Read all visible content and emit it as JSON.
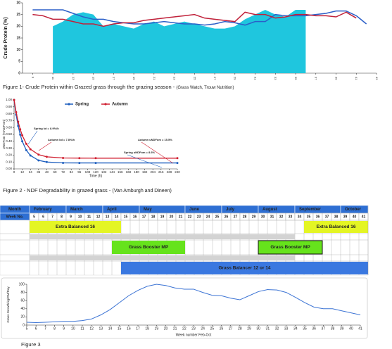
{
  "chart_data": [
    {
      "type": "line",
      "ylabel": "Crude Protein (%)",
      "xlim": [
        8,
        43
      ],
      "xticks": [
        9,
        11,
        13,
        15,
        17,
        19,
        21,
        23,
        25,
        27,
        29,
        31,
        33,
        35,
        37,
        39,
        41,
        43
      ],
      "ylim": [
        0,
        30
      ],
      "yticks": [
        0,
        5,
        10,
        15,
        20,
        25,
        30
      ],
      "grid": false,
      "series": [
        {
          "color": "#1fc6de",
          "area": true,
          "x": [
            11,
            12,
            13,
            14,
            15,
            16,
            17,
            18,
            19,
            20,
            21,
            22,
            23,
            24,
            25,
            26,
            27,
            28,
            29,
            30,
            31,
            32,
            33,
            34,
            35,
            36
          ],
          "values": [
            20,
            22,
            25,
            26,
            25,
            20,
            21,
            20,
            19,
            21,
            22,
            20,
            21,
            22,
            21,
            20,
            19,
            19,
            20,
            23,
            25,
            27,
            25,
            24,
            27,
            27
          ]
        },
        {
          "color": "#2b5fc8",
          "x": [
            9,
            10,
            11,
            12,
            13,
            14,
            15,
            16,
            17,
            18,
            19,
            20,
            21,
            22,
            23,
            24,
            25,
            26,
            27,
            28,
            29,
            30,
            31,
            32,
            33,
            34,
            35,
            36,
            37,
            38,
            39,
            40,
            41,
            42
          ],
          "values": [
            27,
            27,
            27,
            27,
            25.5,
            24,
            23,
            23,
            22,
            21.5,
            21,
            21,
            21.5,
            22,
            21.5,
            21,
            21,
            20.5,
            21,
            22,
            21.5,
            20.5,
            22,
            22,
            25,
            24.5,
            24.5,
            24.5,
            25,
            25.5,
            26.5,
            26.5,
            24.5,
            21
          ]
        },
        {
          "color": "#c0213a",
          "x": [
            9,
            10,
            11,
            12,
            13,
            14,
            15,
            16,
            17,
            18,
            19,
            20,
            21,
            22,
            23,
            24,
            25,
            26,
            27,
            28,
            29,
            30,
            31,
            32,
            33,
            34,
            35,
            36,
            37,
            38,
            39,
            40,
            41
          ],
          "values": [
            25,
            24.5,
            23,
            23,
            22,
            21,
            21,
            20,
            21,
            21.5,
            21.5,
            22.5,
            23,
            23.5,
            24,
            24.5,
            25,
            23.5,
            23,
            22.5,
            22,
            26,
            25,
            25,
            23.5,
            24,
            25,
            25,
            24.5,
            24.5,
            24,
            26,
            23.5
          ]
        }
      ],
      "caption": "Figure 1- Crude Protein within Grazed grass through the grazing season - ",
      "caption_source": "(Grass Watch, Trouw Nutrition)"
    },
    {
      "type": "line",
      "ylabel": "UNDFom (%NDFom)",
      "xlabel": "Time (h)",
      "legend": "top",
      "markers": true,
      "xlim": [
        0,
        240
      ],
      "xticks": [
        0,
        12,
        24,
        36,
        48,
        60,
        72,
        84,
        96,
        108,
        120,
        132,
        144,
        156,
        168,
        180,
        192,
        204,
        216,
        228,
        240
      ],
      "ylim": [
        0,
        1
      ],
      "yticks": [
        {
          "value": 0,
          "label": "0.00"
        },
        {
          "value": 0.1,
          "label": "0.10"
        },
        {
          "value": 0.2,
          "label": "0.20"
        },
        {
          "value": 0.3,
          "label": "0.30"
        },
        {
          "value": 0.4,
          "label": "0.40"
        },
        {
          "value": 0.5,
          "label": "0.50"
        },
        {
          "value": 0.6,
          "label": "0.60"
        },
        {
          "value": 0.7,
          "label": "0.70"
        },
        {
          "value": 0.8,
          "label": "0.80"
        },
        {
          "value": 0.9,
          "label": "0.90"
        },
        {
          "value": 1,
          "label": "1.00"
        }
      ],
      "grid": false,
      "x": [
        0,
        3,
        6,
        9,
        12,
        18,
        24,
        36,
        48,
        72,
        96,
        120,
        240
      ],
      "series": [
        {
          "name": "Spring",
          "color": "#1f5fbf",
          "values": [
            1.0,
            0.786,
            0.622,
            0.496,
            0.4,
            0.27,
            0.194,
            0.123,
            0.099,
            0.087,
            0.086,
            0.086,
            0.086
          ]
        },
        {
          "name": "Autumn",
          "color": "#d01f30",
          "values": [
            1.0,
            0.823,
            0.684,
            0.574,
            0.486,
            0.363,
            0.285,
            0.206,
            0.175,
            0.158,
            0.156,
            0.155,
            0.155
          ]
        }
      ],
      "annotations": [
        {
          "text": "Spring kd = 8.9%/h",
          "color": "#1f5fbf"
        },
        {
          "text": "Autumn kd = 7.8%/h",
          "color": "#d01f30"
        },
        {
          "text": "Autumn uNDFom = 15.5%",
          "color": "#d01f30"
        },
        {
          "text": "Spring uNDFom = 8.6%",
          "color": "#1f5fbf"
        }
      ],
      "caption": "Figure 2 - NDF Degradability in grazed grass - ",
      "caption_source": "(Van Amburgh and Dineen)"
    },
    {
      "type": "line",
      "ylabel": "Grass Growth kg/DM/Day",
      "xlabel": "Week number Feb-Oct",
      "xlim": [
        5,
        41
      ],
      "xticks": [
        5,
        6,
        7,
        8,
        9,
        10,
        11,
        12,
        13,
        14,
        15,
        16,
        17,
        18,
        19,
        20,
        21,
        22,
        23,
        24,
        25,
        26,
        27,
        28,
        29,
        30,
        31,
        32,
        33,
        34,
        35,
        36,
        37,
        38,
        39,
        40,
        41
      ],
      "ylim": [
        0,
        100
      ],
      "yticks": [
        0,
        20,
        40,
        60,
        80,
        100
      ],
      "grid": false,
      "x": [
        5,
        6,
        7,
        8,
        9,
        10,
        11,
        12,
        13,
        14,
        15,
        16,
        17,
        18,
        19,
        20,
        21,
        22,
        23,
        24,
        25,
        26,
        27,
        28,
        29,
        30,
        31,
        32,
        33,
        34,
        35,
        36,
        37,
        38,
        39,
        40,
        41
      ],
      "series": [
        {
          "color": "#3b73d4",
          "values": [
            7,
            6,
            7,
            8,
            9,
            9,
            11,
            15,
            25,
            38,
            55,
            72,
            85,
            95,
            100,
            97,
            91,
            88,
            88,
            80,
            73,
            72,
            66,
            62,
            72,
            82,
            87,
            86,
            80,
            68,
            55,
            44,
            40,
            40,
            35,
            30,
            25
          ]
        }
      ],
      "caption": "Figure 3"
    }
  ],
  "table": {
    "month_header": "Month",
    "week_header": "Week No.",
    "weeks": [
      5,
      6,
      7,
      8,
      9,
      10,
      11,
      12,
      13,
      14,
      15,
      16,
      17,
      18,
      19,
      20,
      21,
      22,
      23,
      24,
      25,
      26,
      27,
      28,
      29,
      30,
      31,
      32,
      33,
      34,
      35,
      36,
      37,
      38,
      39,
      40,
      41
    ],
    "months": [
      {
        "name": "February",
        "start": 5,
        "end": 8
      },
      {
        "name": "March",
        "start": 9,
        "end": 12
      },
      {
        "name": "April",
        "start": 13,
        "end": 16
      },
      {
        "name": "May",
        "start": 17,
        "end": 21
      },
      {
        "name": "June",
        "start": 22,
        "end": 25
      },
      {
        "name": "July",
        "start": 26,
        "end": 29
      },
      {
        "name": "August",
        "start": 30,
        "end": 33
      },
      {
        "name": "September",
        "start": 34,
        "end": 38
      },
      {
        "name": "October",
        "start": 39,
        "end": 41
      }
    ],
    "products": [
      {
        "label": "Extra Balanced 16",
        "start": 5,
        "end": 14,
        "color": "#e4f524"
      },
      {
        "label": "Extra Balanced 16",
        "start": 35,
        "end": 41,
        "color": "#e4f524"
      },
      {
        "label": "Grass Booster MP",
        "start": 14,
        "end": 21,
        "color": "#66e31c"
      },
      {
        "label": "Grass Booster MP",
        "start": 30,
        "end": 36,
        "color": "#66e31c",
        "outlined": true
      },
      {
        "label": "Grass Balancer 12 or 14",
        "start": 15,
        "end": 41,
        "color": "#3a78e0"
      }
    ]
  }
}
